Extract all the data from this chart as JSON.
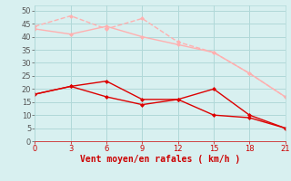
{
  "x": [
    0,
    3,
    6,
    9,
    12,
    15,
    18,
    21
  ],
  "line1": [
    44,
    48,
    43,
    47,
    38,
    34,
    26,
    17
  ],
  "line2": [
    43,
    41,
    44,
    40,
    37,
    34,
    26,
    17
  ],
  "line3": [
    18,
    21,
    23,
    16,
    16,
    20,
    10,
    5
  ],
  "line4": [
    18,
    21,
    17,
    14,
    16,
    10,
    9,
    5
  ],
  "line1_color": "#ffb0b0",
  "line2_color": "#ffb0b0",
  "line3_color": "#dd0000",
  "line4_color": "#dd0000",
  "bg_color": "#d8f0f0",
  "grid_color": "#b0d8d8",
  "xlabel": "Vent moyen/en rafales ( km/h )",
  "xlabel_color": "#cc0000",
  "xticks": [
    0,
    3,
    6,
    9,
    12,
    15,
    18,
    21
  ],
  "yticks": [
    0,
    5,
    10,
    15,
    20,
    25,
    30,
    35,
    40,
    45,
    50
  ],
  "ylim": [
    0,
    52
  ],
  "xlim": [
    0,
    21
  ]
}
